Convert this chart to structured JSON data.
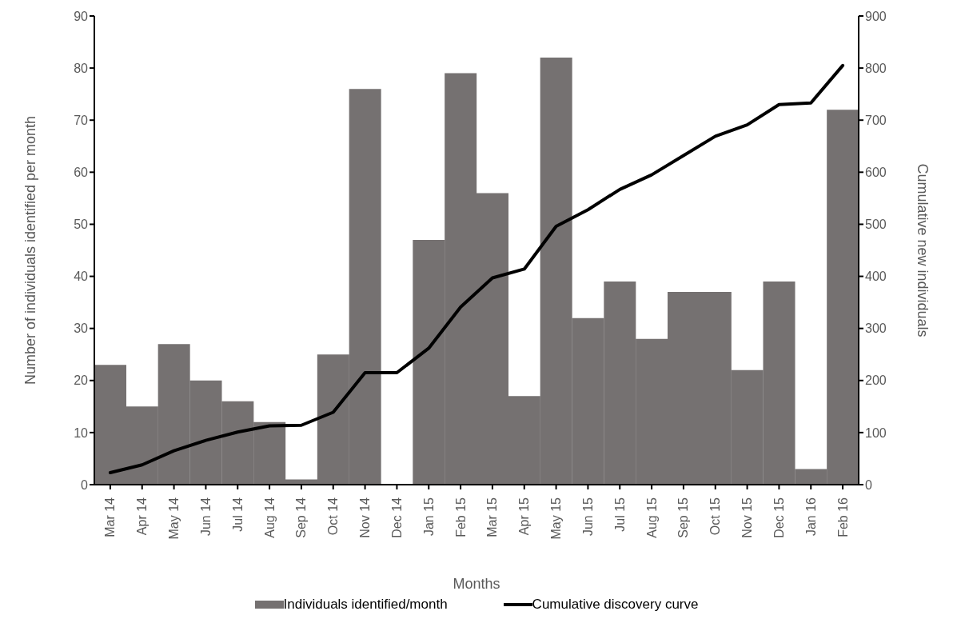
{
  "chart_data": {
    "type": "bar",
    "xlabel": "Months",
    "ylabel": "Number of individuals identified per month",
    "y2label": "Cumulative new individuals",
    "categories": [
      "Mar 14",
      "Apr 14",
      "May 14",
      "Jun 14",
      "Jul 14",
      "Aug 14",
      "Sep 14",
      "Oct 14",
      "Nov 14",
      "Dec 14",
      "Jan 15",
      "Feb 15",
      "Mar 15",
      "Apr 15",
      "May 15",
      "Jun 15",
      "Jul 15",
      "Aug 15",
      "Sep 15",
      "Oct 15",
      "Nov 15",
      "Dec 15",
      "Jan 16",
      "Feb 16"
    ],
    "series": [
      {
        "name": "Individuals identified/month",
        "color": "#757171",
        "values": [
          23,
          15,
          27,
          20,
          16,
          12,
          1,
          25,
          76,
          0,
          47,
          79,
          56,
          17,
          82,
          32,
          39,
          28,
          37,
          37,
          22,
          39,
          3,
          72
        ]
      },
      {
        "name": "Cumulative discovery curve",
        "type": "line",
        "axis": "y2",
        "color": "#000000",
        "values": [
          23,
          38,
          65,
          85,
          101,
          113,
          114,
          139,
          215,
          215,
          262,
          341,
          397,
          414,
          496,
          528,
          567,
          595,
          632,
          669,
          691,
          730,
          733,
          805
        ]
      }
    ],
    "ylim": [
      0,
      90
    ],
    "yticks": [
      0,
      10,
      20,
      30,
      40,
      50,
      60,
      70,
      80,
      90
    ],
    "y2lim": [
      0,
      900
    ],
    "y2ticks": [
      0,
      100,
      200,
      300,
      400,
      500,
      600,
      700,
      800,
      900
    ],
    "grid": false,
    "legend": "bottom",
    "marker": "none",
    "line_style": "solid"
  }
}
